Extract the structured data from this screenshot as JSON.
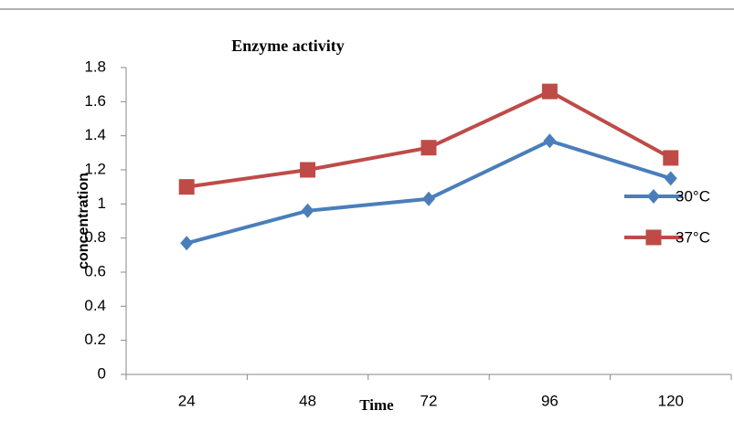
{
  "chart_data": {
    "type": "line",
    "title": "Enzyme activity",
    "xlabel": "Time",
    "ylabel": "concentration",
    "categories": [
      "24",
      "48",
      "72",
      "96",
      "120"
    ],
    "series": [
      {
        "name": "30°C",
        "color": "#4a7ebb",
        "marker": "diamond",
        "values": [
          0.77,
          0.96,
          1.03,
          1.37,
          1.15
        ]
      },
      {
        "name": "37°C",
        "color": "#be4b48",
        "marker": "square",
        "values": [
          1.1,
          1.2,
          1.33,
          1.66,
          1.27
        ]
      }
    ],
    "ylim": [
      0,
      1.8
    ],
    "yticks": [
      0,
      0.2,
      0.4,
      0.6,
      0.8,
      1,
      1.2,
      1.4,
      1.6,
      1.8
    ],
    "grid": false,
    "legend": "right"
  }
}
